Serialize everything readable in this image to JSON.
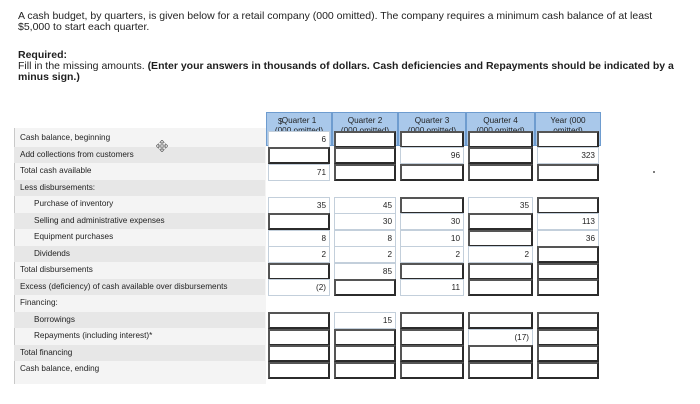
{
  "problem": {
    "intro": "A cash budget, by quarters, is given below for a retail company (000 omitted). The company requires a minimum cash balance of at least $5,000 to start each quarter.",
    "required_heading": "Required:",
    "instruction": "Fill in the missing amounts.",
    "instruction_bold": "(Enter your answers in thousands of dollars. Cash deficiencies and Repayments should be indicated by a minus sign.)"
  },
  "table": {
    "columns": [
      {
        "line1": "Quarter 1",
        "line2": "(000 omitted)"
      },
      {
        "line1": "Quarter 2",
        "line2": "(000 omitted)"
      },
      {
        "line1": "Quarter 3",
        "line2": "(000 omitted)"
      },
      {
        "line1": "Quarter 4",
        "line2": "(000 omitted)"
      },
      {
        "line1": "Year (000",
        "line2": "omitted)"
      }
    ],
    "currency_symbol": "$",
    "rows": [
      {
        "label": "Cash balance, beginning",
        "values": [
          "6",
          "",
          "",
          "",
          ""
        ]
      },
      {
        "label": "Add collections from customers",
        "values": [
          "",
          "",
          "96",
          "",
          "323"
        ]
      },
      {
        "label": "Total cash available",
        "values": [
          "71",
          "",
          "",
          "",
          ""
        ]
      },
      {
        "label": "Less disbursements:",
        "values": []
      },
      {
        "label": "Purchase of inventory",
        "values": [
          "35",
          "45",
          "",
          "35",
          ""
        ]
      },
      {
        "label": "Selling and administrative expenses",
        "values": [
          "",
          "30",
          "30",
          "",
          "113"
        ]
      },
      {
        "label": "Equipment purchases",
        "values": [
          "8",
          "8",
          "10",
          "",
          "36"
        ]
      },
      {
        "label": "Dividends",
        "values": [
          "2",
          "2",
          "2",
          "2",
          ""
        ]
      },
      {
        "label": "Total disbursements",
        "values": [
          "",
          "85",
          "",
          "",
          ""
        ]
      },
      {
        "label": "Excess (deficiency) of cash available over disbursements",
        "values": [
          "(2)",
          "",
          "11",
          "",
          ""
        ]
      },
      {
        "label": "Financing:",
        "values": []
      },
      {
        "label": "Borrowings",
        "values": [
          "",
          "15",
          "",
          "",
          ""
        ]
      },
      {
        "label": "Repayments (including interest)*",
        "values": [
          "",
          "",
          "",
          "(17)",
          ""
        ]
      },
      {
        "label": "Total financing",
        "values": [
          "",
          "",
          "",
          "",
          ""
        ]
      },
      {
        "label": "Cash balance, ending",
        "values": [
          "",
          "",
          "",
          "",
          ""
        ]
      }
    ]
  }
}
